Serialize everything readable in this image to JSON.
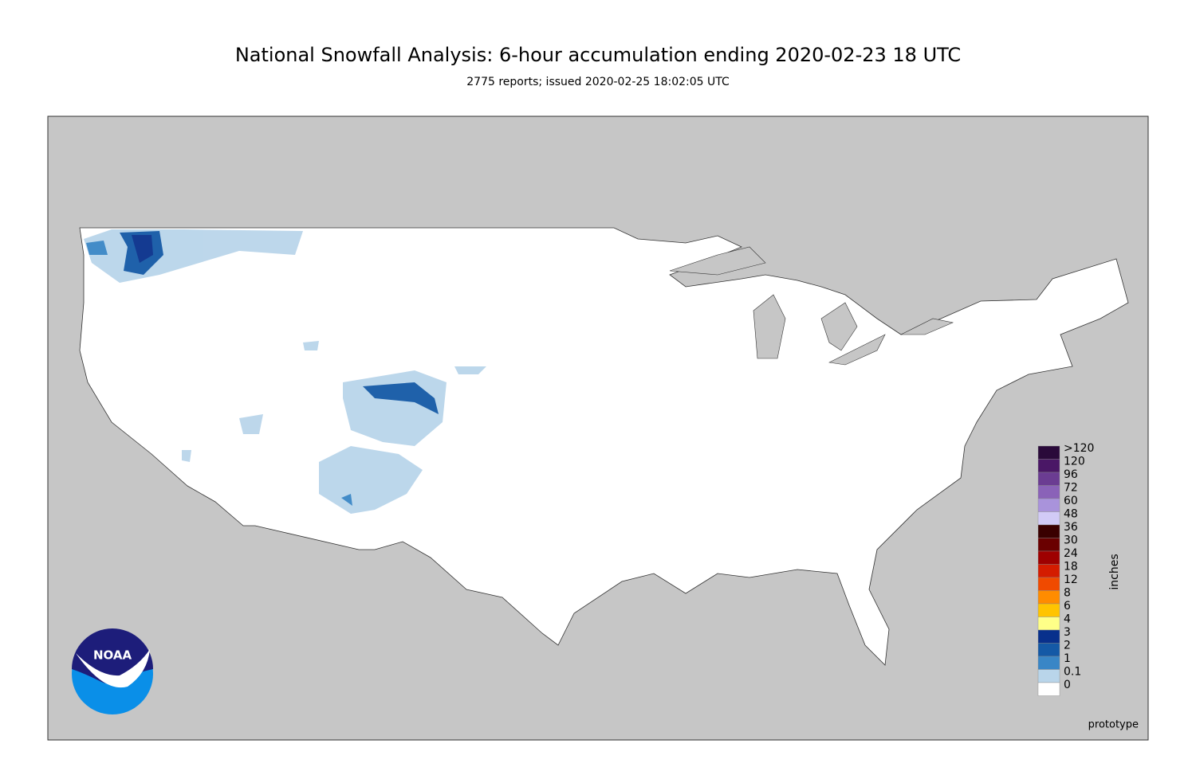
{
  "header": {
    "title": "National Snowfall Analysis: 6-hour accumulation ending 2020-02-23 18 UTC",
    "subtitle": "2775 reports; issued 2020-02-25 18:02:05 UTC"
  },
  "legend": {
    "unit": "inches",
    "items": [
      {
        "label": ">120",
        "color": "#2a0a3a"
      },
      {
        "label": "120",
        "color": "#4a1766"
      },
      {
        "label": "96",
        "color": "#6b3c92"
      },
      {
        "label": "72",
        "color": "#8a62b8"
      },
      {
        "label": "60",
        "color": "#a993db"
      },
      {
        "label": "48",
        "color": "#d2cbf6"
      },
      {
        "label": "36",
        "color": "#3a0000"
      },
      {
        "label": "30",
        "color": "#6a0000"
      },
      {
        "label": "24",
        "color": "#9e0000"
      },
      {
        "label": "18",
        "color": "#d41c00"
      },
      {
        "label": "12",
        "color": "#f04a00"
      },
      {
        "label": "8",
        "color": "#ff8c00"
      },
      {
        "label": "6",
        "color": "#ffc400"
      },
      {
        "label": "4",
        "color": "#ffff88"
      },
      {
        "label": "3",
        "color": "#08308c"
      },
      {
        "label": "2",
        "color": "#1459a6"
      },
      {
        "label": "1",
        "color": "#3986c6"
      },
      {
        "label": "0.1",
        "color": "#b9d5ea"
      },
      {
        "label": "0",
        "color": "#ffffff"
      }
    ]
  },
  "logo": "NOAA",
  "note": "prototype"
}
